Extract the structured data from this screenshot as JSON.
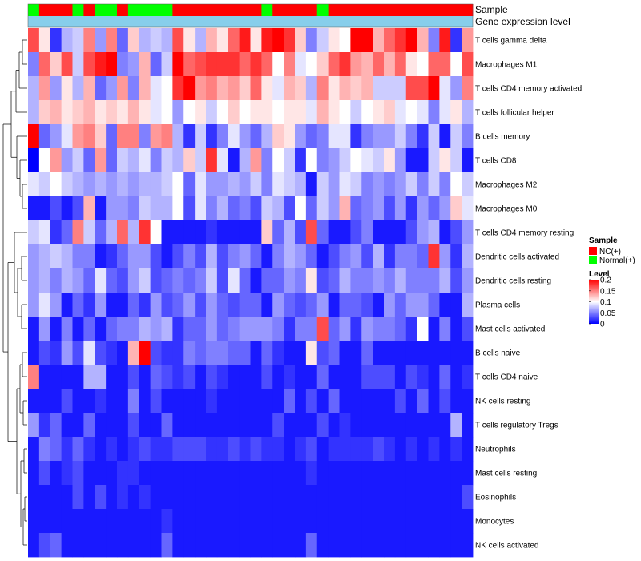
{
  "chart_data": {
    "type": "heatmap",
    "color_scale": {
      "min": 0,
      "mid": 0.1,
      "max": 0.2,
      "low_color": "#0000ff",
      "mid_color": "#ffffff",
      "high_color": "#ff0000"
    },
    "annotation_rows": [
      {
        "name": "Sample",
        "type": "categorical"
      },
      {
        "name": "Gene expression level",
        "type": "constant",
        "color": "#87ceeb"
      }
    ],
    "groups": [
      "Normal",
      "NC",
      "NC",
      "NC",
      "Normal",
      "NC",
      "Normal",
      "Normal",
      "NC",
      "Normal",
      "Normal",
      "Normal",
      "Normal",
      "NC",
      "NC",
      "NC",
      "NC",
      "NC",
      "NC",
      "NC",
      "NC",
      "Normal",
      "NC",
      "NC",
      "NC",
      "NC",
      "Normal",
      "NC",
      "NC",
      "NC",
      "NC",
      "NC",
      "NC",
      "NC",
      "NC",
      "NC",
      "NC",
      "NC",
      "NC",
      "NC"
    ],
    "group_colors": {
      "NC": "#ff0000",
      "Normal": "#00ff00"
    },
    "rows": [
      "T cells gamma delta",
      "Macrophages M1",
      "T cells CD4 memory activated",
      "T cells follicular helper",
      "B cells memory",
      "T cells CD8",
      "Macrophages M2",
      "Macrophages M0",
      "T cells CD4 memory resting",
      "Dendritic cells activated",
      "Dendritic cells resting",
      "Plasma cells",
      "Mast cells activated",
      "B cells naive",
      "T cells CD4 naive",
      "NK cells resting",
      "T cells regulatory  Tregs",
      "Neutrophils",
      "Mast cells resting",
      "Eosinophils",
      "Monocytes",
      "NK cells activated"
    ],
    "values": [
      [
        0.17,
        0.11,
        0.02,
        0.07,
        0.08,
        0.15,
        0.06,
        0.15,
        0.04,
        0.12,
        0.07,
        0.08,
        0.07,
        0.17,
        0.11,
        0.07,
        0.13,
        0.11,
        0.16,
        0.19,
        0.11,
        0.19,
        0.2,
        0.18,
        0.12,
        0.05,
        0.08,
        0.11,
        0.1,
        0.2,
        0.2,
        0.13,
        0.16,
        0.18,
        0.2,
        0.13,
        0.05,
        0.19,
        0.02,
        0.14
      ],
      [
        0.05,
        0.16,
        0.12,
        0.17,
        0.08,
        0.17,
        0.19,
        0.2,
        0.05,
        0.06,
        0.13,
        0.04,
        0.08,
        0.2,
        0.16,
        0.17,
        0.18,
        0.18,
        0.18,
        0.16,
        0.18,
        0.16,
        0.1,
        0.15,
        0.09,
        0.1,
        0.12,
        0.16,
        0.18,
        0.14,
        0.13,
        0.16,
        0.13,
        0.16,
        0.11,
        0.1,
        0.16,
        0.16,
        0.1,
        0.17
      ],
      [
        0.07,
        0.14,
        0.06,
        0.11,
        0.07,
        0.13,
        0.04,
        0.06,
        0.14,
        0.05,
        0.13,
        0.09,
        0.1,
        0.18,
        0.2,
        0.14,
        0.15,
        0.13,
        0.14,
        0.12,
        0.16,
        0.11,
        0.09,
        0.13,
        0.12,
        0.07,
        0.15,
        0.11,
        0.13,
        0.12,
        0.13,
        0.08,
        0.08,
        0.08,
        0.17,
        0.17,
        0.2,
        0.09,
        0.06,
        0.15
      ],
      [
        0.07,
        0.12,
        0.13,
        0.11,
        0.12,
        0.13,
        0.11,
        0.12,
        0.11,
        0.13,
        0.11,
        0.09,
        0.1,
        0.06,
        0.1,
        0.11,
        0.08,
        0.1,
        0.12,
        0.1,
        0.11,
        0.11,
        0.1,
        0.11,
        0.11,
        0.09,
        0.13,
        0.11,
        0.1,
        0.08,
        0.1,
        0.11,
        0.12,
        0.09,
        0.1,
        0.09,
        0.05,
        0.09,
        0.11,
        0.07
      ],
      [
        0.2,
        0.04,
        0.06,
        0.09,
        0.14,
        0.15,
        0.12,
        0.04,
        0.15,
        0.15,
        0.05,
        0.14,
        0.15,
        0.07,
        0.02,
        0.08,
        0.02,
        0.05,
        0.09,
        0.06,
        0.04,
        0.07,
        0.12,
        0.11,
        0.06,
        0.04,
        0.05,
        0.09,
        0.09,
        0.02,
        0.05,
        0.06,
        0.06,
        0.08,
        0.05,
        0.02,
        0.08,
        0.01,
        0.08,
        0.05
      ],
      [
        0.0,
        0.1,
        0.14,
        0.06,
        0.08,
        0.04,
        0.14,
        0.04,
        0.08,
        0.07,
        0.09,
        0.05,
        0.08,
        0.07,
        0.12,
        0.08,
        0.18,
        0.09,
        0.01,
        0.07,
        0.14,
        0.05,
        0.1,
        0.08,
        0.02,
        0.1,
        0.05,
        0.06,
        0.08,
        0.1,
        0.09,
        0.08,
        0.11,
        0.06,
        0.01,
        0.01,
        0.08,
        0.11,
        0.08,
        0.01
      ],
      [
        0.09,
        0.08,
        0.1,
        0.08,
        0.07,
        0.06,
        0.07,
        0.06,
        0.07,
        0.06,
        0.07,
        0.07,
        0.08,
        0.1,
        0.04,
        0.09,
        0.06,
        0.06,
        0.07,
        0.06,
        0.08,
        0.05,
        0.09,
        0.08,
        0.07,
        0.01,
        0.08,
        0.06,
        0.09,
        0.08,
        0.05,
        0.06,
        0.05,
        0.06,
        0.08,
        0.05,
        0.08,
        0.05,
        0.1,
        0.08
      ],
      [
        0.01,
        0.01,
        0.03,
        0.01,
        0.03,
        0.13,
        0.01,
        0.06,
        0.06,
        0.05,
        0.08,
        0.07,
        0.07,
        0.1,
        0.03,
        0.09,
        0.05,
        0.07,
        0.04,
        0.05,
        0.03,
        0.08,
        0.07,
        0.03,
        0.1,
        0.04,
        0.08,
        0.06,
        0.13,
        0.04,
        0.05,
        0.06,
        0.03,
        0.06,
        0.02,
        0.06,
        0.04,
        0.06,
        0.12,
        0.09
      ],
      [
        0.08,
        0.09,
        0.02,
        0.04,
        0.15,
        0.08,
        0.04,
        0.07,
        0.16,
        0.07,
        0.18,
        0.1,
        0.01,
        0.01,
        0.01,
        0.01,
        0.02,
        0.01,
        0.01,
        0.01,
        0.01,
        0.12,
        0.04,
        0.07,
        0.03,
        0.17,
        0.04,
        0.01,
        0.01,
        0.03,
        0.05,
        0.01,
        0.01,
        0.01,
        0.03,
        0.06,
        0.07,
        0.01,
        0.03,
        0.06
      ],
      [
        0.06,
        0.07,
        0.08,
        0.07,
        0.05,
        0.05,
        0.01,
        0.02,
        0.04,
        0.06,
        0.06,
        0.03,
        0.01,
        0.03,
        0.05,
        0.03,
        0.07,
        0.03,
        0.05,
        0.06,
        0.04,
        0.01,
        0.05,
        0.07,
        0.06,
        0.04,
        0.01,
        0.03,
        0.05,
        0.06,
        0.03,
        0.07,
        0.02,
        0.05,
        0.05,
        0.04,
        0.18,
        0.06,
        0.02,
        0.07
      ],
      [
        0.06,
        0.07,
        0.05,
        0.07,
        0.06,
        0.04,
        0.09,
        0.04,
        0.03,
        0.06,
        0.08,
        0.03,
        0.04,
        0.05,
        0.04,
        0.05,
        0.08,
        0.03,
        0.09,
        0.04,
        0.01,
        0.04,
        0.04,
        0.06,
        0.05,
        0.11,
        0.03,
        0.04,
        0.07,
        0.05,
        0.05,
        0.06,
        0.05,
        0.07,
        0.05,
        0.05,
        0.05,
        0.07,
        0.03,
        0.06
      ],
      [
        0.06,
        0.09,
        0.06,
        0.01,
        0.04,
        0.02,
        0.06,
        0.01,
        0.01,
        0.04,
        0.02,
        0.06,
        0.03,
        0.04,
        0.06,
        0.03,
        0.06,
        0.04,
        0.03,
        0.04,
        0.04,
        0.01,
        0.06,
        0.04,
        0.03,
        0.04,
        0.06,
        0.01,
        0.04,
        0.04,
        0.03,
        0.01,
        0.06,
        0.04,
        0.06,
        0.06,
        0.04,
        0.01,
        0.01,
        0.07
      ],
      [
        0.01,
        0.06,
        0.01,
        0.05,
        0.01,
        0.04,
        0.01,
        0.04,
        0.05,
        0.05,
        0.07,
        0.06,
        0.07,
        0.02,
        0.04,
        0.04,
        0.06,
        0.04,
        0.05,
        0.06,
        0.06,
        0.06,
        0.05,
        0.02,
        0.05,
        0.05,
        0.17,
        0.04,
        0.06,
        0.02,
        0.06,
        0.05,
        0.05,
        0.04,
        0.02,
        0.1,
        0.01,
        0.05,
        0.01,
        0.03
      ],
      [
        0.01,
        0.03,
        0.02,
        0.06,
        0.03,
        0.09,
        0.03,
        0.02,
        0.01,
        0.13,
        0.2,
        0.03,
        0.02,
        0.02,
        0.05,
        0.04,
        0.05,
        0.05,
        0.04,
        0.04,
        0.01,
        0.04,
        0.02,
        0.01,
        0.01,
        0.11,
        0.03,
        0.04,
        0.01,
        0.01,
        0.04,
        0.01,
        0.01,
        0.01,
        0.01,
        0.01,
        0.01,
        0.01,
        0.01,
        0.01
      ],
      [
        0.15,
        0.01,
        0.01,
        0.01,
        0.01,
        0.07,
        0.07,
        0.01,
        0.01,
        0.03,
        0.01,
        0.04,
        0.03,
        0.02,
        0.03,
        0.01,
        0.03,
        0.02,
        0.01,
        0.01,
        0.01,
        0.03,
        0.01,
        0.02,
        0.01,
        0.01,
        0.04,
        0.01,
        0.01,
        0.01,
        0.03,
        0.03,
        0.03,
        0.01,
        0.03,
        0.02,
        0.01,
        0.04,
        0.01,
        0.02
      ],
      [
        0.01,
        0.01,
        0.01,
        0.03,
        0.01,
        0.01,
        0.02,
        0.01,
        0.01,
        0.05,
        0.01,
        0.03,
        0.01,
        0.01,
        0.01,
        0.01,
        0.02,
        0.01,
        0.01,
        0.01,
        0.01,
        0.01,
        0.01,
        0.04,
        0.01,
        0.03,
        0.01,
        0.04,
        0.01,
        0.01,
        0.01,
        0.01,
        0.01,
        0.03,
        0.01,
        0.04,
        0.01,
        0.03,
        0.01,
        0.01
      ],
      [
        0.06,
        0.02,
        0.04,
        0.01,
        0.01,
        0.04,
        0.01,
        0.01,
        0.01,
        0.03,
        0.01,
        0.01,
        0.04,
        0.01,
        0.01,
        0.01,
        0.01,
        0.01,
        0.01,
        0.01,
        0.01,
        0.01,
        0.03,
        0.01,
        0.01,
        0.01,
        0.03,
        0.01,
        0.02,
        0.01,
        0.01,
        0.01,
        0.01,
        0.01,
        0.01,
        0.01,
        0.01,
        0.01,
        0.07,
        0.01
      ],
      [
        0.01,
        0.05,
        0.04,
        0.02,
        0.04,
        0.02,
        0.01,
        0.02,
        0.01,
        0.02,
        0.03,
        0.02,
        0.02,
        0.03,
        0.03,
        0.03,
        0.02,
        0.02,
        0.03,
        0.02,
        0.03,
        0.02,
        0.02,
        0.01,
        0.02,
        0.03,
        0.01,
        0.02,
        0.02,
        0.02,
        0.02,
        0.03,
        0.02,
        0.01,
        0.02,
        0.01,
        0.02,
        0.01,
        0.02,
        0.01
      ],
      [
        0.01,
        0.03,
        0.01,
        0.02,
        0.03,
        0.01,
        0.01,
        0.01,
        0.02,
        0.02,
        0.01,
        0.01,
        0.01,
        0.01,
        0.01,
        0.01,
        0.01,
        0.01,
        0.01,
        0.01,
        0.01,
        0.01,
        0.01,
        0.01,
        0.01,
        0.02,
        0.01,
        0.01,
        0.01,
        0.01,
        0.01,
        0.01,
        0.01,
        0.01,
        0.01,
        0.01,
        0.01,
        0.01,
        0.01,
        0.01
      ],
      [
        0.01,
        0.01,
        0.01,
        0.01,
        0.03,
        0.01,
        0.03,
        0.01,
        0.02,
        0.01,
        0.02,
        0.01,
        0.01,
        0.01,
        0.01,
        0.01,
        0.01,
        0.01,
        0.01,
        0.01,
        0.01,
        0.01,
        0.01,
        0.01,
        0.01,
        0.01,
        0.01,
        0.01,
        0.01,
        0.01,
        0.01,
        0.01,
        0.01,
        0.01,
        0.01,
        0.01,
        0.01,
        0.01,
        0.01,
        0.03
      ],
      [
        0.01,
        0.01,
        0.01,
        0.01,
        0.01,
        0.01,
        0.01,
        0.01,
        0.01,
        0.01,
        0.01,
        0.01,
        0.02,
        0.01,
        0.01,
        0.01,
        0.01,
        0.01,
        0.01,
        0.01,
        0.01,
        0.01,
        0.01,
        0.01,
        0.01,
        0.01,
        0.01,
        0.01,
        0.01,
        0.01,
        0.01,
        0.01,
        0.01,
        0.01,
        0.01,
        0.01,
        0.01,
        0.01,
        0.01,
        0.01
      ],
      [
        0.01,
        0.03,
        0.04,
        0.01,
        0.01,
        0.01,
        0.01,
        0.01,
        0.01,
        0.01,
        0.01,
        0.01,
        0.04,
        0.01,
        0.01,
        0.01,
        0.01,
        0.01,
        0.01,
        0.01,
        0.01,
        0.01,
        0.01,
        0.01,
        0.01,
        0.04,
        0.01,
        0.01,
        0.01,
        0.01,
        0.01,
        0.01,
        0.01,
        0.01,
        0.01,
        0.01,
        0.01,
        0.01,
        0.01,
        0.01
      ]
    ],
    "legend": {
      "sample": {
        "title": "Sample",
        "entries": [
          "NC(+)",
          "Normal(+)"
        ]
      },
      "level": {
        "title": "Level",
        "ticks": [
          "0.2",
          "0.15",
          "0.1",
          "0.05",
          "0"
        ],
        "tick_values": [
          0.2,
          0.15,
          0.1,
          0.05,
          0
        ]
      }
    }
  }
}
